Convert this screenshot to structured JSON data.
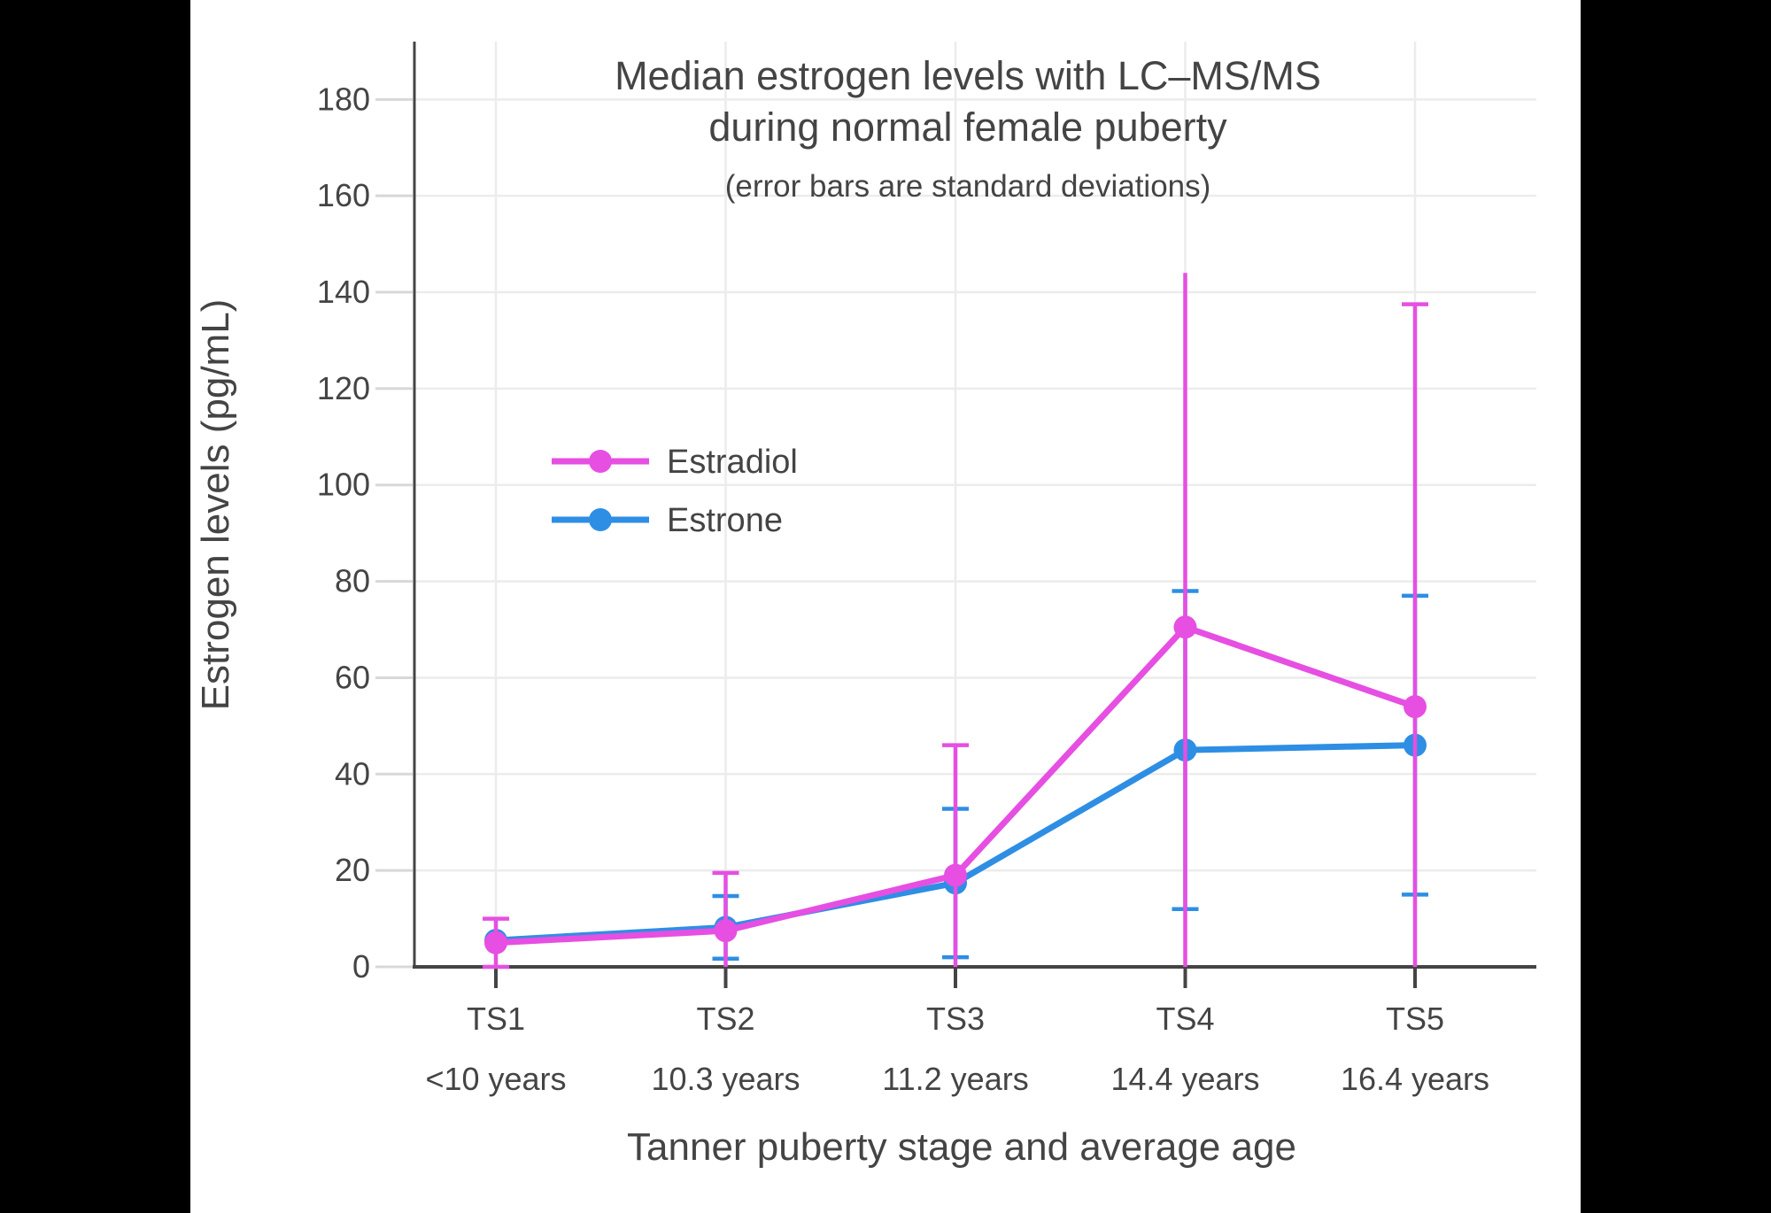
{
  "page": {
    "letterbox_color": "#000000",
    "canvas_color": "#FFFFFF"
  },
  "chart_data": {
    "type": "line",
    "title": "Median estrogen levels with LC–MS/MS during normal female puberty",
    "title_lines": [
      "Median estrogen levels with LC–MS/MS",
      "during normal female puberty"
    ],
    "subtitle": "(error bars are standard deviations)",
    "xlabel": "Tanner puberty stage and average age",
    "ylabel": "Estrogen levels (pg/mL)",
    "unit": "pg/mL",
    "ylim": [
      0,
      192
    ],
    "yticks": [
      0,
      20,
      40,
      60,
      80,
      100,
      120,
      140,
      160,
      180
    ],
    "grid": true,
    "legend_position": "inside-upper-left-of-plot",
    "error_bar_meaning": "standard deviation",
    "categories": [
      "TS1",
      "TS2",
      "TS3",
      "TS4",
      "TS5"
    ],
    "category_ages": [
      "<10 years",
      "10.3 years",
      "11.2 years",
      "14.4 years",
      "16.4 years"
    ],
    "series": [
      {
        "name": "Estradiol",
        "color": "#E64FE2",
        "values": [
          5,
          7.5,
          19,
          70.5,
          54
        ],
        "sd": [
          5,
          12,
          27,
          73.5,
          83.5
        ],
        "cap_top": [
          true,
          true,
          true,
          false,
          true
        ]
      },
      {
        "name": "Estrone",
        "color": "#2E8EE4",
        "values": [
          5.5,
          8.2,
          17.4,
          45,
          46
        ],
        "sd": [
          0,
          6.5,
          15.4,
          33,
          31
        ],
        "cap_top": [
          true,
          true,
          true,
          true,
          true
        ]
      }
    ],
    "colors": {
      "text": "#444444",
      "grid": "#ECECEC",
      "axis": "#444444"
    }
  }
}
